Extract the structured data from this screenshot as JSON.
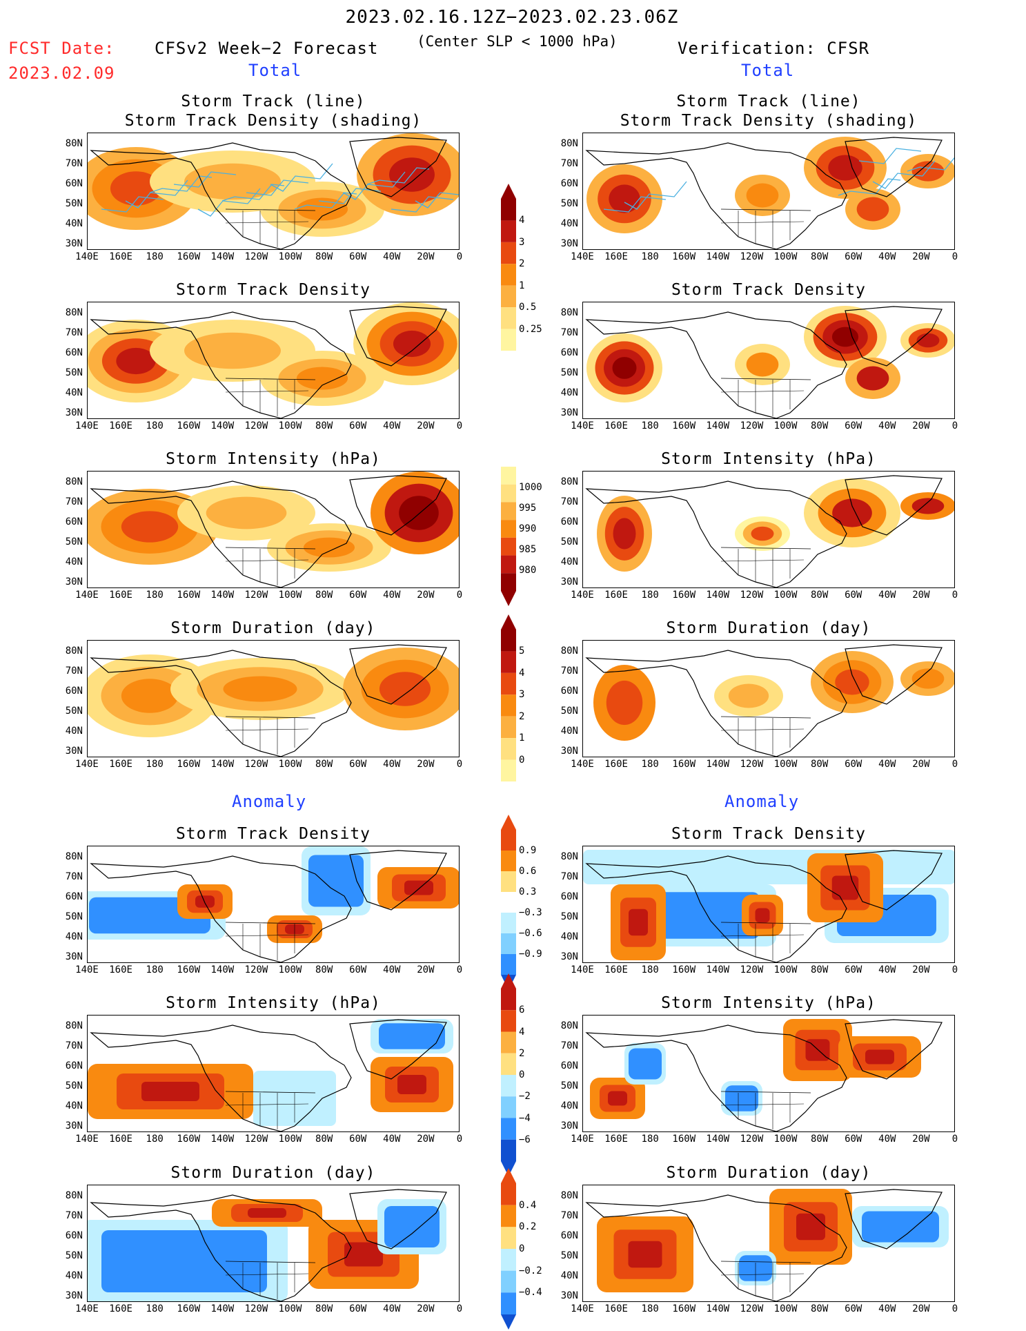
{
  "header": {
    "period": "2023.02.16.12Z−2023.02.23.06Z",
    "fcst_label": "FCST Date:",
    "fcst_date": "2023.02.09",
    "left_title": "CFSv2 Week−2 Forecast",
    "subtitle": "(Center SLP < 1000 hPa)",
    "right_title": "Verification: CFSR",
    "total_label": "Total",
    "anomaly_label": "Anomaly"
  },
  "panel_titles": {
    "track_line": "Storm Track (line)",
    "track_shading": "Storm Track Density (shading)",
    "density": "Storm Track Density",
    "intensity": "Storm Intensity (hPa)",
    "duration": "Storm Duration (day)"
  },
  "axes": {
    "lat_labels": [
      "80N",
      "70N",
      "60N",
      "50N",
      "40N",
      "30N"
    ],
    "lon_labels": [
      "140E",
      "160E",
      "180",
      "160W",
      "140W",
      "120W",
      "100W",
      "80W",
      "60W",
      "40W",
      "20W",
      "0"
    ]
  },
  "colorbars": {
    "density_total": [
      "4",
      "3",
      "2",
      "1",
      "0.5",
      "0.25"
    ],
    "intensity_total": [
      "1000",
      "995",
      "990",
      "985",
      "980"
    ],
    "duration_total": [
      "5",
      "4",
      "3",
      "2",
      "1",
      "0"
    ],
    "density_anom": [
      "0.9",
      "0.6",
      "0.3",
      "−0.3",
      "−0.6",
      "−0.9"
    ],
    "intensity_anom": [
      "6",
      "4",
      "2",
      "0",
      "−2",
      "−4",
      "−6"
    ],
    "duration_anom": [
      "0.4",
      "0.2",
      "0",
      "−0.2",
      "−0.4"
    ]
  },
  "colors": {
    "warm": [
      "#fff5a0",
      "#ffe080",
      "#fcb040",
      "#f98a10",
      "#e84a10",
      "#c01810",
      "#900000"
    ],
    "cool": [
      "#c0f0ff",
      "#80d0ff",
      "#3090ff",
      "#1050d0"
    ],
    "track": "#4ab0e0"
  }
}
